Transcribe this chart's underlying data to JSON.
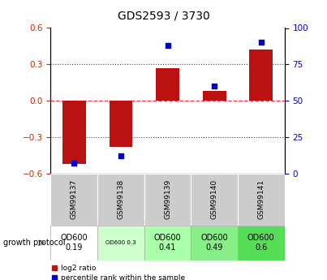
{
  "title": "GDS2593 / 3730",
  "samples": [
    "GSM99137",
    "GSM99138",
    "GSM99139",
    "GSM99140",
    "GSM99141"
  ],
  "log2_ratio": [
    -0.52,
    -0.38,
    0.27,
    0.08,
    0.42
  ],
  "percentile_rank": [
    7,
    12,
    88,
    60,
    90
  ],
  "growth_protocol": [
    "OD600\n0.19",
    "OD600 0.3",
    "OD600\n0.41",
    "OD600\n0.49",
    "OD600\n0.6"
  ],
  "growth_bg_colors": [
    "#ffffff",
    "#ccffcc",
    "#aaffaa",
    "#88ee88",
    "#55dd55"
  ],
  "growth_small_text": [
    false,
    true,
    false,
    false,
    false
  ],
  "ylim_left": [
    -0.6,
    0.6
  ],
  "ylim_right": [
    0,
    100
  ],
  "yticks_left": [
    -0.6,
    -0.3,
    0.0,
    0.3,
    0.6
  ],
  "yticks_right": [
    0,
    25,
    50,
    75,
    100
  ],
  "bar_color_red": "#bb1111",
  "dot_color_blue": "#0000cc",
  "axis_left_color": "#cc2200",
  "axis_right_color": "#0000cc",
  "zero_line_color": "#ff3333",
  "grid_color": "#444444",
  "bg_header_color": "#cccccc",
  "legend_red_label": "log2 ratio",
  "legend_blue_label": "percentile rank within the sample",
  "growth_label": "growth protocol"
}
